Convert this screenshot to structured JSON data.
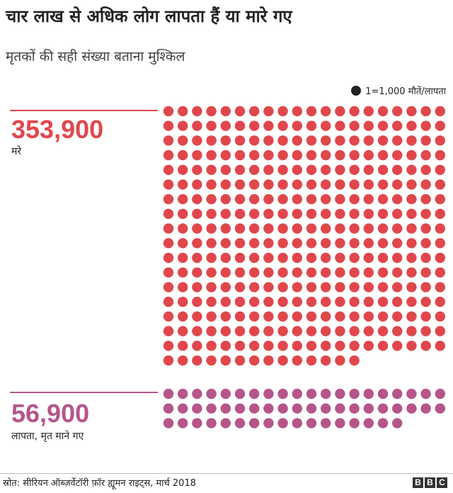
{
  "title": "चार लाख से अधिक लोग लापता हैं या मारे गए",
  "subtitle": "मृतकों की सही संख्या बताना मुश्किल",
  "legend_label": "1=1,000 मौतें/लापता",
  "source": "स्रोत: सीरियन ऑब्ज़र्वेटॉरी फ़ॉर ह्यूमन राइट्स, मार्च 2018",
  "logo": {
    "letters": [
      "B",
      "B",
      "C"
    ]
  },
  "colors": {
    "killed": "#e0474c",
    "missing": "#b5558b",
    "legend_dot": "#222222"
  },
  "chart_data": {
    "type": "waffle",
    "unit": 1000,
    "legend": "1=1,000 मौतें/लापता",
    "series": [
      {
        "name": "मरे",
        "value": 353900,
        "dots": 354,
        "value_label": "353,900",
        "color": "#e0474c"
      },
      {
        "name": "लापता, मृत माने गए",
        "value": 56900,
        "dots": 57,
        "value_label": "56,900",
        "color": "#b5558b"
      }
    ]
  }
}
